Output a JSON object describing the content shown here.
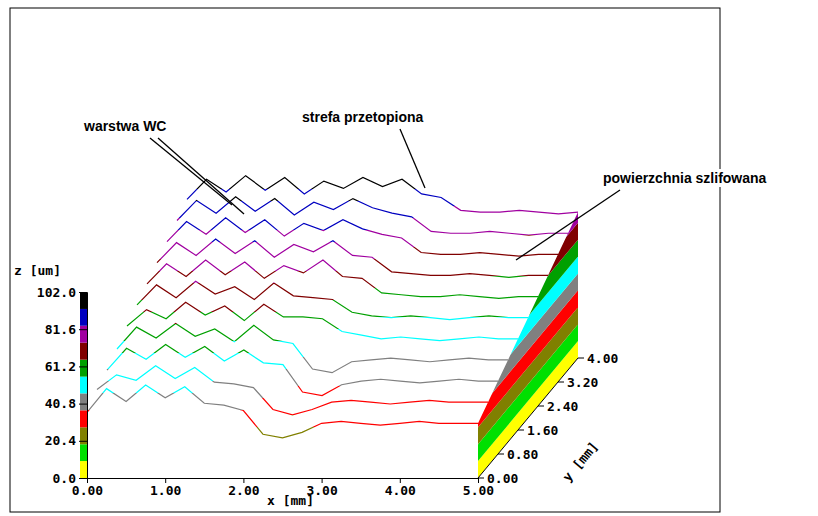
{
  "chart_data": {
    "type": "surface3d",
    "x_label": "x [mm]",
    "y_label": "y [mm]",
    "z_label": "z [um]",
    "xlim": [
      0,
      5
    ],
    "ylim": [
      0,
      4
    ],
    "zlim": [
      0,
      102
    ],
    "xticks": [
      {
        "value": 0,
        "label": "0.00"
      },
      {
        "value": 1,
        "label": "1.00"
      },
      {
        "value": 2,
        "label": "2.00"
      },
      {
        "value": 3,
        "label": "3.00"
      },
      {
        "value": 4,
        "label": "4.00"
      },
      {
        "value": 5,
        "label": "5.00"
      }
    ],
    "yticks": [
      {
        "value": 0,
        "label": "0.00"
      },
      {
        "value": 0.8,
        "label": "0.80"
      },
      {
        "value": 1.6,
        "label": "1.60"
      },
      {
        "value": 2.4,
        "label": "2.40"
      },
      {
        "value": 3.2,
        "label": "3.20"
      },
      {
        "value": 4,
        "label": "4.00"
      }
    ],
    "zticks": [
      {
        "value": 0,
        "label": "0.0"
      },
      20.4,
      40.8,
      61.2,
      81.6,
      {
        "value": 102,
        "label": "102.0"
      }
    ],
    "x": [
      0,
      0.25,
      0.5,
      0.75,
      1,
      1.25,
      1.5,
      1.75,
      2,
      2.25,
      2.5,
      2.75,
      3,
      3.25,
      3.5,
      3.75,
      4,
      4.25,
      4.5,
      4.75,
      5
    ],
    "y": [
      0,
      0.4,
      0.8,
      1.2,
      1.6,
      2,
      2.4,
      2.8,
      3.2,
      3.6,
      4
    ],
    "z": [
      [
        36,
        49,
        42,
        51,
        44,
        50,
        41,
        40,
        37,
        24,
        22,
        25,
        30,
        31,
        30,
        29,
        30,
        31,
        30,
        30,
        30
      ],
      [
        42,
        50,
        47,
        55,
        48,
        54,
        46,
        45,
        43,
        31,
        28,
        31,
        35,
        36,
        35,
        34,
        35,
        36,
        35,
        35,
        35
      ],
      [
        46,
        58,
        52,
        60,
        53,
        59,
        51,
        57,
        50,
        49,
        34,
        32,
        38,
        40,
        41,
        40,
        39,
        40,
        41,
        40,
        40
      ],
      [
        51,
        63,
        57,
        65,
        58,
        62,
        55,
        64,
        56,
        54,
        40,
        38,
        44,
        45,
        46,
        45,
        44,
        45,
        46,
        45,
        45
      ],
      [
        57,
        66,
        61,
        70,
        63,
        68,
        60,
        69,
        62,
        62,
        61,
        54,
        52,
        50,
        51,
        50,
        49,
        50,
        51,
        50,
        50
      ],
      [
        62,
        73,
        66,
        75,
        68,
        72,
        65,
        74,
        67,
        66,
        65,
        58,
        56,
        55,
        56,
        55,
        54,
        55,
        56,
        55,
        55
      ],
      [
        67,
        78,
        71,
        80,
        72,
        79,
        70,
        77,
        73,
        80,
        71,
        70,
        62,
        61,
        60,
        60,
        61,
        60,
        59,
        60,
        60
      ],
      [
        72,
        83,
        76,
        85,
        77,
        84,
        75,
        82,
        78,
        84,
        76,
        75,
        67,
        66,
        65,
        65,
        66,
        65,
        64,
        65,
        65
      ],
      [
        77,
        88,
        81,
        90,
        82,
        89,
        80,
        87,
        83,
        89,
        84,
        81,
        79,
        71,
        70,
        70,
        71,
        70,
        69,
        70,
        70
      ],
      [
        82,
        93,
        86,
        95,
        87,
        94,
        85,
        92,
        88,
        94,
        89,
        86,
        84,
        76,
        75,
        75,
        76,
        75,
        74,
        75,
        75
      ],
      [
        87,
        98,
        91,
        100,
        92,
        99,
        90,
        97,
        93,
        99,
        94,
        98,
        90,
        88,
        81,
        80,
        80,
        81,
        80,
        79,
        80
      ]
    ],
    "colorbar": {
      "levels": [
        0,
        9.3,
        18.5,
        27.8,
        37.1,
        46.4,
        55.6,
        64.9,
        74.2,
        83.5,
        92.7,
        102
      ],
      "colors": [
        "#ffff00",
        "#00e000",
        "#808000",
        "#ff0000",
        "#808080",
        "#00ffff",
        "#00a000",
        "#800000",
        "#a000a0",
        "#0000c0",
        "#000000"
      ]
    },
    "annotations": [
      "warstwa WC",
      "strefa przetopiona",
      "powierzchnia szlifowana"
    ]
  }
}
